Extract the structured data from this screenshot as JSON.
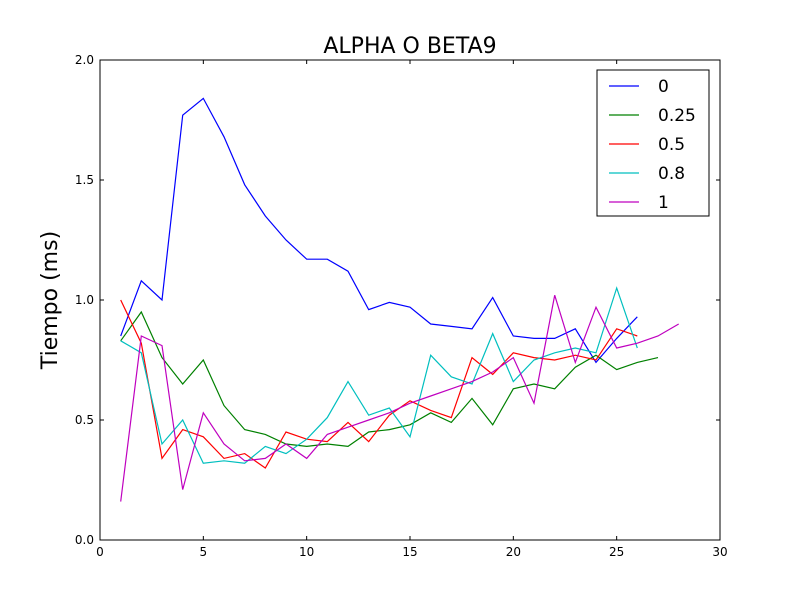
{
  "chart_data": {
    "type": "line",
    "title": "ALPHA O BETA9",
    "xlabel": "",
    "ylabel": "Tiempo (ms)",
    "xlim": [
      0,
      30
    ],
    "ylim": [
      0.0,
      2.0
    ],
    "x_ticks": [
      "0",
      "5",
      "10",
      "15",
      "20",
      "25",
      "30"
    ],
    "y_ticks": [
      "0.0",
      "0.5",
      "1.0",
      "1.5",
      "2.0"
    ],
    "grid": false,
    "legend_position": "top-right",
    "series": [
      {
        "name": "0",
        "color": "#0000ff",
        "x": [
          1,
          2,
          3,
          4,
          5,
          6,
          7,
          8,
          9,
          10,
          11,
          12,
          13,
          14,
          15,
          16,
          17,
          18,
          19,
          20,
          21,
          22,
          23,
          24,
          25,
          26
        ],
        "y": [
          0.85,
          1.08,
          1.0,
          1.77,
          1.84,
          1.68,
          1.48,
          1.35,
          1.25,
          1.17,
          1.17,
          1.12,
          0.96,
          0.99,
          0.97,
          0.9,
          0.89,
          0.88,
          1.01,
          0.85,
          0.84,
          0.84,
          0.88,
          0.74,
          0.84,
          0.93
        ]
      },
      {
        "name": "0.25",
        "color": "#008000",
        "x": [
          1,
          2,
          3,
          4,
          5,
          6,
          7,
          8,
          9,
          10,
          11,
          12,
          13,
          14,
          15,
          16,
          17,
          18,
          19,
          20,
          21,
          22,
          23,
          24,
          25,
          26,
          27
        ],
        "y": [
          0.83,
          0.95,
          0.76,
          0.65,
          0.75,
          0.56,
          0.46,
          0.44,
          0.4,
          0.39,
          0.4,
          0.39,
          0.45,
          0.46,
          0.48,
          0.53,
          0.49,
          0.59,
          0.48,
          0.63,
          0.65,
          0.63,
          0.72,
          0.77,
          0.71,
          0.74,
          0.76
        ]
      },
      {
        "name": "0.5",
        "color": "#ff0000",
        "x": [
          1,
          2,
          3,
          4,
          5,
          6,
          7,
          8,
          9,
          10,
          11,
          12,
          13,
          14,
          15,
          16,
          17,
          18,
          19,
          20,
          21,
          22,
          23,
          24,
          25,
          26
        ],
        "y": [
          1.0,
          0.82,
          0.34,
          0.46,
          0.43,
          0.34,
          0.36,
          0.3,
          0.45,
          0.42,
          0.41,
          0.49,
          0.41,
          0.52,
          0.58,
          0.54,
          0.51,
          0.76,
          0.69,
          0.78,
          0.76,
          0.75,
          0.77,
          0.75,
          0.88,
          0.85
        ]
      },
      {
        "name": "0.8",
        "color": "#00bfbf",
        "x": [
          1,
          2,
          3,
          4,
          5,
          6,
          7,
          8,
          9,
          10,
          11,
          12,
          13,
          14,
          15,
          16,
          17,
          18,
          19,
          20,
          21,
          22,
          23,
          24,
          25,
          26
        ],
        "y": [
          0.83,
          0.78,
          0.4,
          0.5,
          0.32,
          0.33,
          0.32,
          0.39,
          0.36,
          0.42,
          0.51,
          0.66,
          0.52,
          0.55,
          0.43,
          0.77,
          0.68,
          0.65,
          0.86,
          0.66,
          0.75,
          0.78,
          0.8,
          0.78,
          1.05,
          0.8
        ]
      },
      {
        "name": "1",
        "color": "#bf00bf",
        "x": [
          1,
          2,
          3,
          4,
          5,
          6,
          7,
          8,
          9,
          10,
          11,
          12,
          13,
          14,
          15,
          16,
          17,
          18,
          19,
          20,
          21,
          22,
          23,
          24,
          25,
          26,
          27,
          28
        ],
        "y": [
          0.16,
          0.85,
          0.81,
          0.21,
          0.53,
          0.4,
          0.33,
          0.34,
          0.4,
          0.34,
          0.44,
          0.47,
          0.5,
          0.53,
          0.57,
          0.6,
          0.63,
          0.66,
          0.7,
          0.76,
          0.57,
          1.02,
          0.74,
          0.97,
          0.8,
          0.82,
          0.85,
          0.9
        ]
      }
    ]
  }
}
